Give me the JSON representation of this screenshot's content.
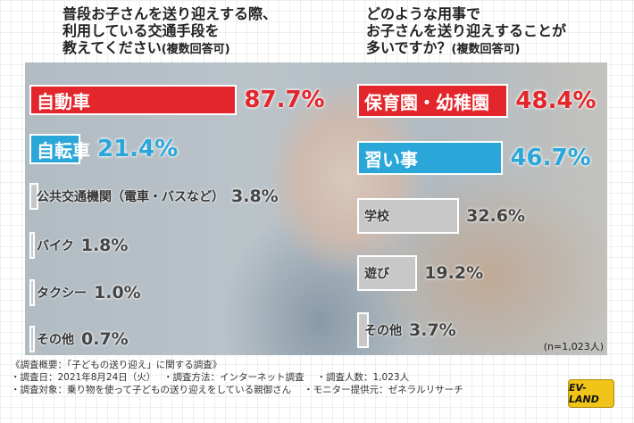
{
  "left": {
    "title_lines": [
      "普段お子さんを送り迎えする際、",
      "利用している交通手段を",
      "教えてください"
    ],
    "title_note": "(複数回答可)",
    "items": [
      {
        "label": "自動車",
        "value": 87.7,
        "display": "87.7%",
        "color": "#e3262b",
        "style": "hi"
      },
      {
        "label": "自転車",
        "value": 21.4,
        "display": "21.4%",
        "color": "#2aa6d9",
        "style": "hi"
      },
      {
        "label": "公共交通機関（電車・バスなど）",
        "value": 3.8,
        "display": "3.8%",
        "style": "lo"
      },
      {
        "label": "バイク",
        "value": 1.8,
        "display": "1.8%",
        "style": "lo"
      },
      {
        "label": "タクシー",
        "value": 1.0,
        "display": "1.0%",
        "style": "lo"
      },
      {
        "label": "その他",
        "value": 0.7,
        "display": "0.7%",
        "style": "lo"
      }
    ]
  },
  "right": {
    "title_lines": [
      "どのような用事で",
      "お子さんを送り迎えすることが",
      "多いですか？"
    ],
    "title_note": "(複数回答可)",
    "items": [
      {
        "label": "保育園・幼稚園",
        "value": 48.4,
        "display": "48.4%",
        "color": "#e3262b",
        "style": "hi"
      },
      {
        "label": "習い事",
        "value": 46.7,
        "display": "46.7%",
        "color": "#2aa6d9",
        "style": "hi"
      },
      {
        "label": "学校",
        "value": 32.6,
        "display": "32.6%",
        "style": "lo"
      },
      {
        "label": "遊び",
        "value": 19.2,
        "display": "19.2%",
        "style": "lo"
      },
      {
        "label": "その他",
        "value": 3.7,
        "display": "3.7%",
        "style": "lo"
      }
    ]
  },
  "sample": "(n=1,023人)",
  "footer": {
    "heading": "《調査概要：「子どもの送り迎え」に関する調査》",
    "line1": [
      "・調査日：2021年8月24日（火）",
      "・調査方法：インターネット調査",
      "・調査人数：1,023人"
    ],
    "line2": [
      "・調査対象：乗り物を使って子どもの送り迎えをしている親御さん",
      "・モニター提供元：ゼネラルリサーチ"
    ]
  },
  "logo": "EV-LAND"
}
